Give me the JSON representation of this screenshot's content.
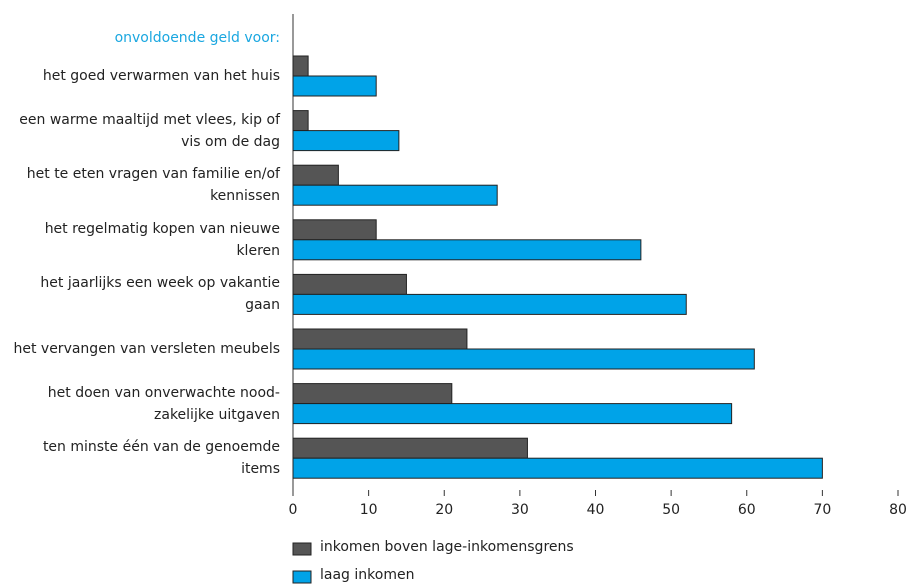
{
  "chart_data": {
    "type": "bar",
    "orientation": "horizontal",
    "subtitle": "onvoldoende geld voor:",
    "categories": [
      "het goed verwarmen van het huis",
      "een warme maaltijd met vlees, kip of vis om de dag",
      "het te eten vragen van familie en/of kennissen",
      "het regelmatig kopen van nieuwe kleren",
      "het jaarlijks een week op vakantie gaan",
      "het vervangen van versleten meubels",
      "het doen van onverwachte nood-zakelijke uitgaven",
      "ten minste één van de genoemde items"
    ],
    "series": [
      {
        "name": "inkomen boven lage-inkomensgrens",
        "color": "#555555",
        "values": [
          2,
          2,
          6,
          11,
          15,
          23,
          21,
          31
        ]
      },
      {
        "name": "laag inkomen",
        "color": "#00a3e8",
        "values": [
          11,
          14,
          27,
          46,
          52,
          61,
          58,
          70
        ]
      }
    ],
    "xlim": [
      0,
      80
    ],
    "xticks": [
      0,
      10,
      20,
      30,
      40,
      50,
      60,
      70,
      80
    ]
  }
}
